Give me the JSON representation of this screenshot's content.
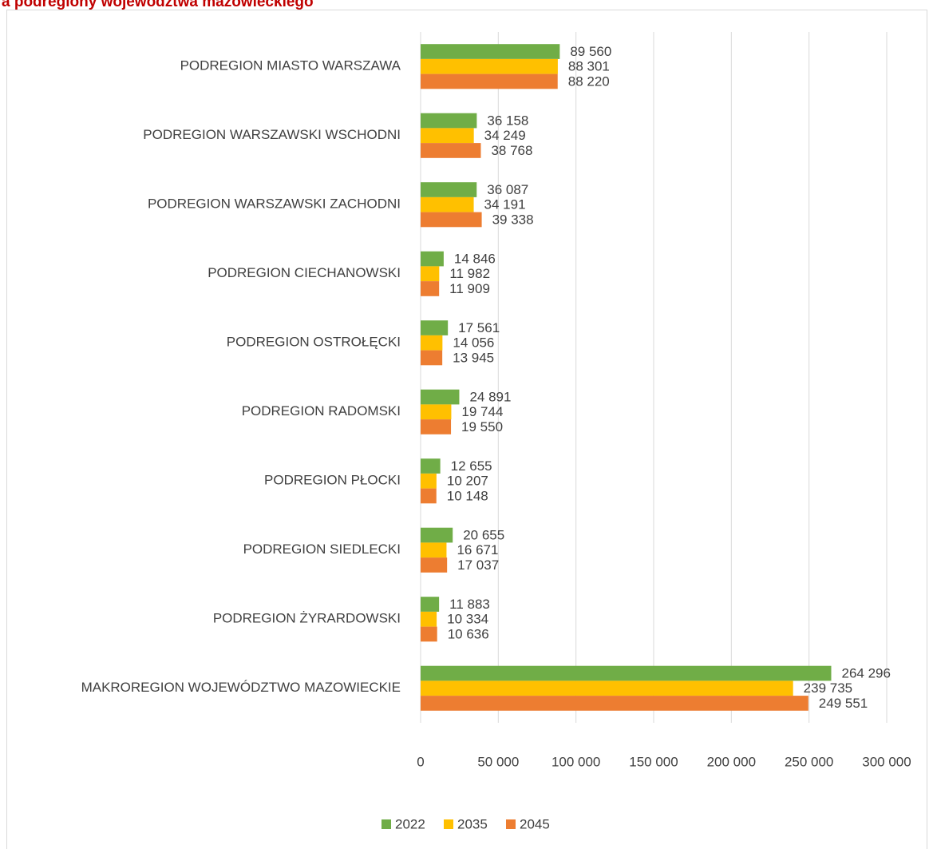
{
  "chart_data": {
    "type": "bar",
    "orientation": "horizontal",
    "title": "a podregiony województwa mazowieckiego",
    "categories": [
      "PODREGION MIASTO WARSZAWA",
      "PODREGION WARSZAWSKI WSCHODNI",
      "PODREGION WARSZAWSKI ZACHODNI",
      "PODREGION CIECHANOWSKI",
      "PODREGION OSTROŁĘCKI",
      "PODREGION RADOMSKI",
      "PODREGION PŁOCKI",
      "PODREGION SIEDLECKI",
      "PODREGION ŻYRARDOWSKI",
      "MAKROREGION WOJEWÓDZTWO MAZOWIECKIE"
    ],
    "series": [
      {
        "name": "2022",
        "color": "#70ad47",
        "values": [
          89560,
          36158,
          36087,
          14846,
          17561,
          24891,
          12655,
          20655,
          11883,
          264296
        ],
        "value_labels": [
          "89 560",
          "36 158",
          "36 087",
          "14 846",
          "17 561",
          "24 891",
          "12 655",
          "20 655",
          "11 883",
          "264 296"
        ]
      },
      {
        "name": "2035",
        "color": "#ffc000",
        "values": [
          88301,
          34249,
          34191,
          11982,
          14056,
          19744,
          10207,
          16671,
          10334,
          239735
        ],
        "value_labels": [
          "88 301",
          "34 249",
          "34 191",
          "11 982",
          "14 056",
          "19 744",
          "10 207",
          "16 671",
          "10 334",
          "239 735"
        ]
      },
      {
        "name": "2045",
        "color": "#ed7d31",
        "values": [
          88220,
          38768,
          39338,
          11909,
          13945,
          19550,
          10148,
          17037,
          10636,
          249551
        ],
        "value_labels": [
          "88 220",
          "38 768",
          "39 338",
          "11 909",
          "13 945",
          "19 550",
          "10 148",
          "17 037",
          "10 636",
          "249 551"
        ]
      }
    ],
    "xlim": [
      0,
      300000
    ],
    "xticks": [
      0,
      {
        "value": 50000,
        "label": "50 000"
      },
      {
        "value": 100000,
        "label": "100 000"
      },
      {
        "value": 150000,
        "label": "150 000"
      },
      {
        "value": 200000,
        "label": "200 000"
      },
      {
        "value": 250000,
        "label": "250 000"
      },
      {
        "value": 300000,
        "label": "300 000"
      }
    ],
    "grid": true,
    "legend": "bottom"
  }
}
